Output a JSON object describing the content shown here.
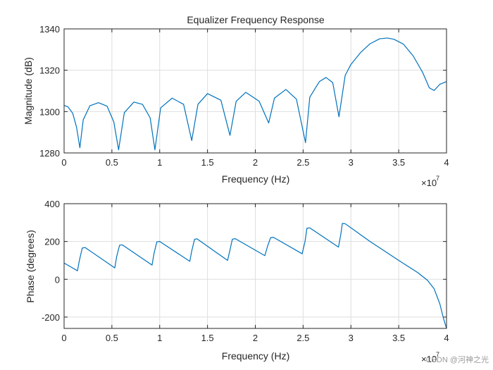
{
  "figure_title": "Equalizer Frequency Response",
  "watermark": "CSDN @河神之光",
  "colors": {
    "line": "#0072BD",
    "grid": "#dedede",
    "axis": "#262626"
  },
  "chart_data": [
    {
      "type": "line",
      "title": "Equalizer Frequency Response",
      "xlabel": "Frequency (Hz)",
      "ylabel": "Magnitude (dB)",
      "xlim": [
        0,
        40000000
      ],
      "ylim": [
        1280,
        1340
      ],
      "x_tick_values": [
        0,
        5000000,
        10000000,
        15000000,
        20000000,
        25000000,
        30000000,
        35000000,
        40000000
      ],
      "x_tick_labels": [
        "0",
        "0.5",
        "1",
        "1.5",
        "2",
        "2.5",
        "3",
        "3.5",
        "4"
      ],
      "y_tick_values": [
        1280,
        1300,
        1320,
        1340
      ],
      "y_tick_labels": [
        "1280",
        "1300",
        "1320",
        "1340"
      ],
      "x_exponent_base": "×10",
      "x_exponent_power": "7",
      "grid": true,
      "series": [
        {
          "name": "Magnitude",
          "points": [
            [
              0,
              1303
            ],
            [
              400000,
              1302.3
            ],
            [
              900000,
              1299.2
            ],
            [
              1300000,
              1292.5
            ],
            [
              1650000,
              1282.5
            ],
            [
              2000000,
              1296
            ],
            [
              2700000,
              1302.8
            ],
            [
              3600000,
              1304.3
            ],
            [
              4500000,
              1302.6
            ],
            [
              5200000,
              1295
            ],
            [
              5700000,
              1281.5
            ],
            [
              6300000,
              1299.5
            ],
            [
              7300000,
              1304.6
            ],
            [
              8200000,
              1303.5
            ],
            [
              9000000,
              1297
            ],
            [
              9500000,
              1281.5
            ],
            [
              10100000,
              1301.8
            ],
            [
              11300000,
              1306.5
            ],
            [
              12500000,
              1303.5
            ],
            [
              13350000,
              1286
            ],
            [
              14000000,
              1303.5
            ],
            [
              15000000,
              1308.7
            ],
            [
              16400000,
              1305.5
            ],
            [
              17350000,
              1288.5
            ],
            [
              18000000,
              1305
            ],
            [
              19000000,
              1309.3
            ],
            [
              20400000,
              1305
            ],
            [
              21400000,
              1294.5
            ],
            [
              22000000,
              1306.5
            ],
            [
              23200000,
              1310.7
            ],
            [
              24300000,
              1306
            ],
            [
              25250000,
              1285
            ],
            [
              25700000,
              1307
            ],
            [
              26700000,
              1314.5
            ],
            [
              27400000,
              1316.5
            ],
            [
              28100000,
              1314
            ],
            [
              28750000,
              1297.5
            ],
            [
              29400000,
              1317.5
            ],
            [
              30000000,
              1322.8
            ],
            [
              31000000,
              1328.5
            ],
            [
              32000000,
              1332.8
            ],
            [
              33000000,
              1335.2
            ],
            [
              33800000,
              1335.6
            ],
            [
              34500000,
              1335
            ],
            [
              35500000,
              1332.6
            ],
            [
              36500000,
              1327
            ],
            [
              37500000,
              1319
            ],
            [
              38200000,
              1311.5
            ],
            [
              38700000,
              1310.2
            ],
            [
              39300000,
              1313.2
            ],
            [
              40000000,
              1314.5
            ]
          ]
        }
      ]
    },
    {
      "type": "line",
      "title": "",
      "xlabel": "Frequency (Hz)",
      "ylabel": "Phase (degrees)",
      "xlim": [
        0,
        40000000
      ],
      "ylim": [
        -260,
        400
      ],
      "x_tick_values": [
        0,
        5000000,
        10000000,
        15000000,
        20000000,
        25000000,
        30000000,
        35000000,
        40000000
      ],
      "x_tick_labels": [
        "0",
        "0.5",
        "1",
        "1.5",
        "2",
        "2.5",
        "3",
        "3.5",
        "4"
      ],
      "y_tick_values": [
        -200,
        0,
        200,
        400
      ],
      "y_tick_labels": [
        "-200",
        "0",
        "200",
        "400"
      ],
      "x_exponent_base": "×10",
      "x_exponent_power": "7",
      "grid": true,
      "series": [
        {
          "name": "Phase",
          "points": [
            [
              0,
              86
            ],
            [
              1400000,
              45
            ],
            [
              1600000,
              100
            ],
            [
              1900000,
              165
            ],
            [
              2200000,
              168
            ],
            [
              5300000,
              60
            ],
            [
              5500000,
              120
            ],
            [
              5800000,
              180
            ],
            [
              6100000,
              182
            ],
            [
              9200000,
              75
            ],
            [
              9400000,
              135
            ],
            [
              9700000,
              198
            ],
            [
              10000000,
              200
            ],
            [
              13150000,
              95
            ],
            [
              13350000,
              150
            ],
            [
              13650000,
              212
            ],
            [
              13900000,
              214
            ],
            [
              17100000,
              100
            ],
            [
              17350000,
              155
            ],
            [
              17600000,
              212
            ],
            [
              17900000,
              215
            ],
            [
              21000000,
              125
            ],
            [
              21300000,
              178
            ],
            [
              21600000,
              220
            ],
            [
              21900000,
              222
            ],
            [
              24900000,
              135
            ],
            [
              25200000,
              200
            ],
            [
              25400000,
              270
            ],
            [
              25700000,
              272
            ],
            [
              28700000,
              170
            ],
            [
              28950000,
              240
            ],
            [
              29100000,
              295
            ],
            [
              29400000,
              294
            ],
            [
              32000000,
              200
            ],
            [
              35000000,
              100
            ],
            [
              37000000,
              35
            ],
            [
              38000000,
              -5
            ],
            [
              38700000,
              -50
            ],
            [
              39300000,
              -130
            ],
            [
              39700000,
              -210
            ],
            [
              40000000,
              -260
            ]
          ]
        }
      ]
    }
  ]
}
